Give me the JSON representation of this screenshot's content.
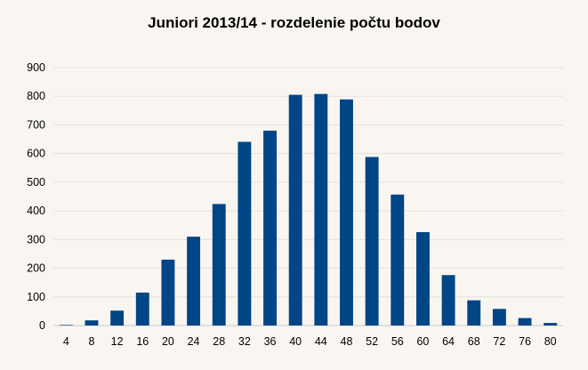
{
  "chart_data": {
    "type": "bar",
    "title": "Juniori 2013/14 - rozdelenie počtu bodov",
    "xlabel": "",
    "ylabel": "",
    "categories": [
      "4",
      "8",
      "12",
      "16",
      "20",
      "24",
      "28",
      "32",
      "36",
      "40",
      "44",
      "48",
      "52",
      "56",
      "60",
      "64",
      "68",
      "72",
      "76",
      "80"
    ],
    "values": [
      2,
      18,
      52,
      115,
      230,
      310,
      424,
      641,
      680,
      805,
      808,
      789,
      588,
      457,
      326,
      176,
      88,
      58,
      26,
      9
    ],
    "ylim": [
      0,
      900
    ],
    "yticks": [
      0,
      100,
      200,
      300,
      400,
      500,
      600,
      700,
      800,
      900
    ],
    "grid": true,
    "bar_color": "#004586",
    "grid_color": "#e6e0da",
    "legend": "none"
  }
}
